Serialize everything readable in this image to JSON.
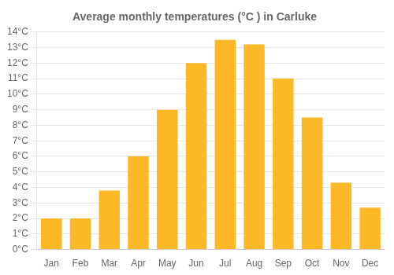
{
  "chart_data": {
    "type": "bar",
    "title": "Average monthly temperatures (°C ) in Carluke",
    "categories": [
      "Jan",
      "Feb",
      "Mar",
      "Apr",
      "May",
      "Jun",
      "Jul",
      "Aug",
      "Sep",
      "Oct",
      "Nov",
      "Dec"
    ],
    "values": [
      2.0,
      2.0,
      3.8,
      6.0,
      9.0,
      12.0,
      13.5,
      13.2,
      11.0,
      8.5,
      4.3,
      2.7
    ],
    "color": "#FDB827",
    "ylim": [
      0,
      14
    ],
    "yticks": [
      {
        "value": 0,
        "label": "0°C"
      },
      {
        "value": 1,
        "label": "1°C"
      },
      {
        "value": 2,
        "label": "2°C"
      },
      {
        "value": 3,
        "label": "3°C"
      },
      {
        "value": 4,
        "label": "4°C"
      },
      {
        "value": 5,
        "label": "5°C"
      },
      {
        "value": 6,
        "label": "6°C"
      },
      {
        "value": 7,
        "label": "7°C"
      },
      {
        "value": 8,
        "label": "8°C"
      },
      {
        "value": 9,
        "label": "9°C"
      },
      {
        "value": 10,
        "label": "10°C"
      },
      {
        "value": 11,
        "label": "11°C"
      },
      {
        "value": 12,
        "label": "12°C"
      },
      {
        "value": 13,
        "label": "13°C"
      },
      {
        "value": 14,
        "label": "14°C"
      }
    ],
    "grid": true
  }
}
